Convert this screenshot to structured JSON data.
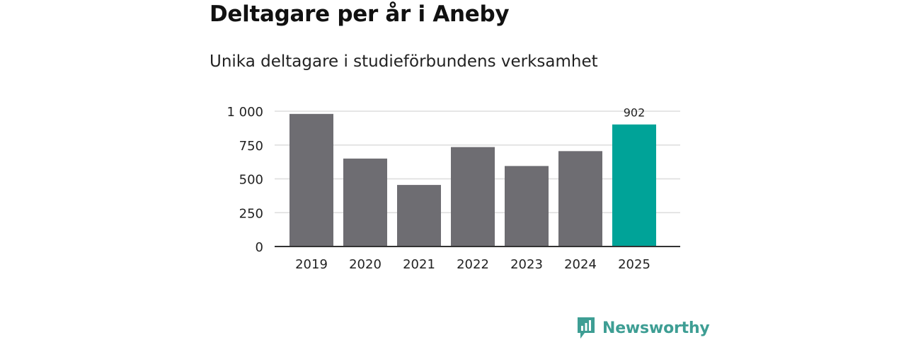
{
  "title": "Deltagare per år i Aneby",
  "subtitle": "Unika deltagare i studieförbundens verksamhet",
  "brand": {
    "name": "Newsworthy",
    "icon": "newsworthy-logo-icon",
    "color": "#3e9e94"
  },
  "colors": {
    "bar": "#6e6d72",
    "highlight": "#00a398",
    "grid": "#dddddd",
    "axis": "#333333"
  },
  "chart_data": {
    "type": "bar",
    "categories": [
      "2019",
      "2020",
      "2021",
      "2022",
      "2023",
      "2024",
      "2025"
    ],
    "values": [
      980,
      650,
      455,
      735,
      595,
      705,
      902
    ],
    "highlight_index": 6,
    "data_labels": [
      {
        "index": 6,
        "text": "902"
      }
    ],
    "ylim": [
      0,
      1000
    ],
    "yticks": [
      0,
      250,
      500,
      750,
      1000
    ],
    "ytick_labels": [
      "0",
      "250",
      "500",
      "750",
      "1 000"
    ],
    "grid": true,
    "legend": "none",
    "xlabel": "",
    "ylabel": ""
  }
}
